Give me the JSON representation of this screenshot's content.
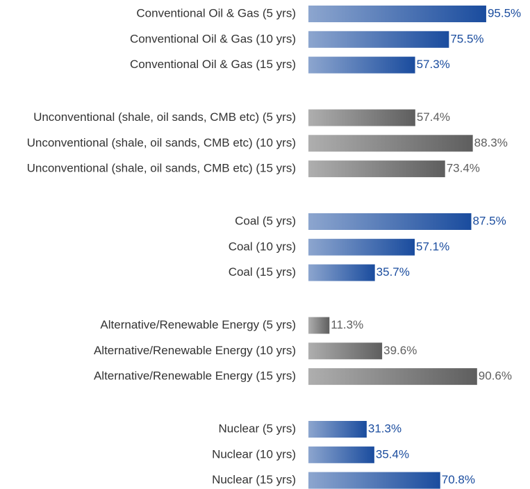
{
  "chart_data": {
    "type": "bar",
    "orientation": "horizontal",
    "categories": [
      "Conventional Oil & Gas (5 yrs)",
      "Conventional Oil & Gas (10 yrs)",
      "Conventional Oil & Gas (15 yrs)",
      "Unconventional (shale, oil sands, CMB etc) (5 yrs)",
      "Unconventional (shale, oil sands, CMB etc) (10 yrs)",
      "Unconventional (shale, oil sands, CMB etc) (15 yrs)",
      "Coal  (5 yrs)",
      "Coal  (10 yrs)",
      "Coal  (15 yrs)",
      "Alternative/Renewable Energy  (5 yrs)",
      "Alternative/Renewable Energy  (10 yrs)",
      "Alternative/Renewable Energy (15 yrs)",
      "Nuclear (5 yrs)",
      "Nuclear (10 yrs)",
      "Nuclear (15 yrs)"
    ],
    "values": [
      95.5,
      75.5,
      57.3,
      57.4,
      88.3,
      73.4,
      87.5,
      57.1,
      35.7,
      11.3,
      39.6,
      90.6,
      31.3,
      35.4,
      70.8
    ],
    "value_labels": [
      "95.5%",
      "75.5%",
      "57.3%",
      "57.4%",
      "88.3%",
      "73.4%",
      "87.5%",
      "57.1%",
      "35.7%",
      "11.3%",
      "39.6%",
      "90.6%",
      "31.3%",
      "35.4%",
      "70.8%"
    ],
    "colors": [
      "#1a4c9e",
      "#1a4c9e",
      "#1a4c9e",
      "#5e5e5e",
      "#5e5e5e",
      "#5e5e5e",
      "#1a4c9e",
      "#1a4c9e",
      "#1a4c9e",
      "#5e5e5e",
      "#5e5e5e",
      "#5e5e5e",
      "#1a4c9e",
      "#1a4c9e",
      "#1a4c9e"
    ],
    "xlim": [
      0,
      100
    ]
  }
}
